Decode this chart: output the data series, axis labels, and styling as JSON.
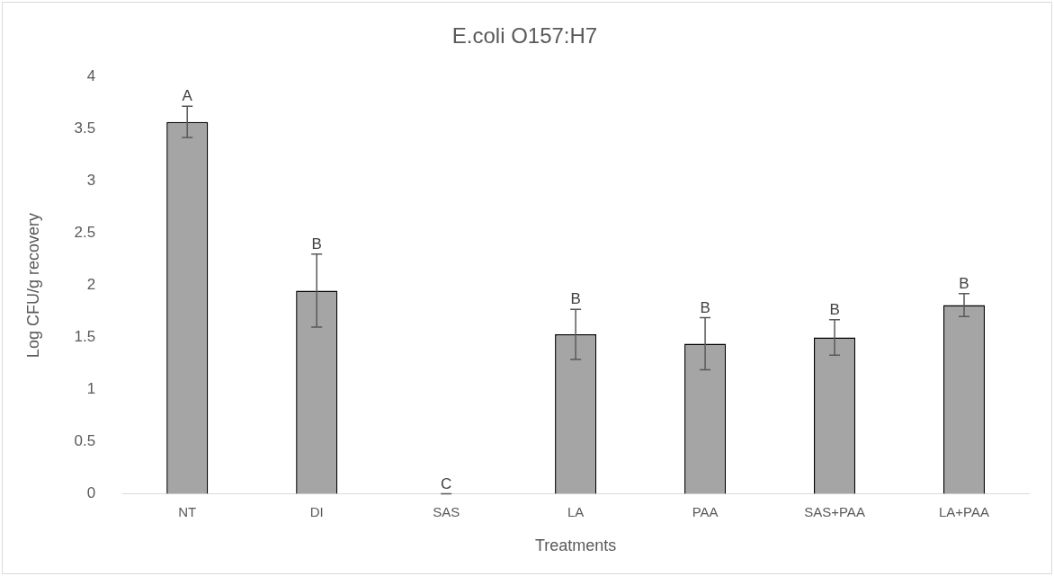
{
  "chart_data": {
    "type": "bar",
    "title": "E.coli O157:H7",
    "xlabel": "Treatments",
    "ylabel": "Log CFU/g recovery",
    "categories": [
      "NT",
      "DI",
      "SAS",
      "LA",
      "PAA",
      "SAS+PAA",
      "LA+PAA"
    ],
    "values": [
      3.57,
      1.95,
      0,
      1.53,
      1.44,
      1.5,
      1.81
    ],
    "errors": [
      0.15,
      0.35,
      0,
      0.24,
      0.25,
      0.17,
      0.11
    ],
    "color": "#a5a5a5",
    "ylim": [
      0,
      4
    ],
    "yticks": [
      0,
      0.5,
      1,
      1.5,
      2,
      2.5,
      3,
      3.5,
      4
    ],
    "grid": false,
    "legend": false,
    "annotations": [
      {
        "text": "A",
        "x": "NT",
        "y": 3.72
      },
      {
        "text": "B",
        "x": "DI",
        "y": 2.3
      },
      {
        "text": "C",
        "x": "SAS",
        "y": 0
      },
      {
        "text": "B",
        "x": "LA",
        "y": 1.77
      },
      {
        "text": "B",
        "x": "PAA",
        "y": 1.69
      },
      {
        "text": "B",
        "x": "SAS+PAA",
        "y": 1.67
      },
      {
        "text": "B",
        "x": "LA+PAA",
        "y": 1.92
      }
    ]
  }
}
